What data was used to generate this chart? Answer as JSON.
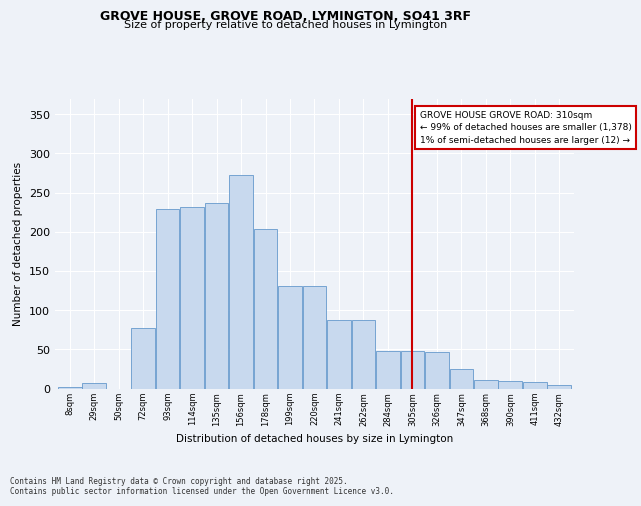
{
  "title": "GROVE HOUSE, GROVE ROAD, LYMINGTON, SO41 3RF",
  "subtitle": "Size of property relative to detached houses in Lymington",
  "xlabel": "Distribution of detached houses by size in Lymington",
  "ylabel": "Number of detached properties",
  "bar_color": "#c8d9ee",
  "bar_edge_color": "#6699cc",
  "background_color": "#eef2f8",
  "grid_color": "#ffffff",
  "vline_color": "#cc0000",
  "annotation_text": "GROVE HOUSE GROVE ROAD: 310sqm\n← 99% of detached houses are smaller (1,378)\n1% of semi-detached houses are larger (12) →",
  "footer_text": "Contains HM Land Registry data © Crown copyright and database right 2025.\nContains public sector information licensed under the Open Government Licence v3.0.",
  "categories": [
    "8sqm",
    "29sqm",
    "50sqm",
    "72sqm",
    "93sqm",
    "114sqm",
    "135sqm",
    "156sqm",
    "178sqm",
    "199sqm",
    "220sqm",
    "241sqm",
    "262sqm",
    "284sqm",
    "305sqm",
    "326sqm",
    "347sqm",
    "368sqm",
    "390sqm",
    "411sqm",
    "432sqm"
  ],
  "values": [
    2,
    7,
    0,
    77,
    229,
    232,
    237,
    272,
    203,
    131,
    131,
    87,
    88,
    48,
    48,
    47,
    25,
    11,
    9,
    8,
    4
  ],
  "vline_index": 14,
  "ylim": [
    0,
    370
  ],
  "yticks": [
    0,
    50,
    100,
    150,
    200,
    250,
    300,
    350
  ],
  "title_fontsize": 9,
  "subtitle_fontsize": 8,
  "ylabel_fontsize": 7.5,
  "xlabel_fontsize": 7.5,
  "ytick_fontsize": 8,
  "xtick_fontsize": 6,
  "annotation_fontsize": 6.5,
  "footer_fontsize": 5.5
}
